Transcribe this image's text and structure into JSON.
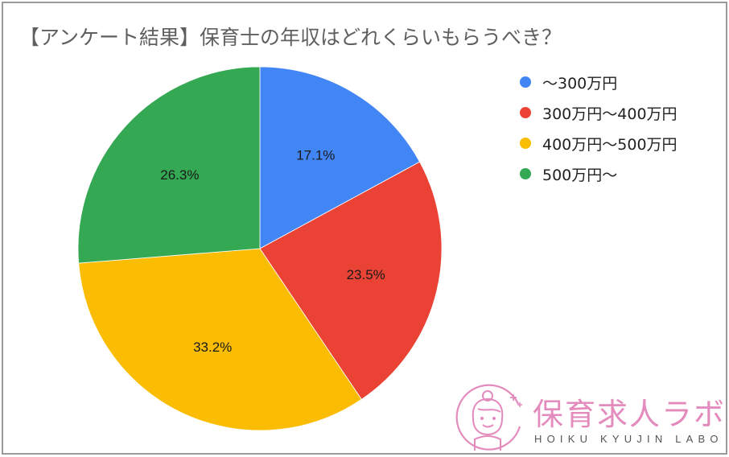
{
  "title": "【アンケート結果】保育士の年収はどれくらいもらうべき？",
  "chart_data": {
    "type": "pie",
    "title": "【アンケート結果】保育士の年収はどれくらいもらうべき？",
    "categories": [
      "～300万円",
      "300万円～400万円",
      "400万円～500万円",
      "500万円～"
    ],
    "values": [
      17.1,
      23.5,
      33.2,
      26.3
    ],
    "unit": "%",
    "colors": [
      "#4285F4",
      "#EA4335",
      "#FBBC04",
      "#34A853"
    ],
    "data_labels": [
      "17.1%",
      "23.5%",
      "33.2%",
      "26.3%"
    ],
    "legend_position": "right",
    "start_angle": "12 o'clock, clockwise"
  },
  "legend": {
    "items": [
      {
        "label": "～300万円",
        "color": "#4285F4"
      },
      {
        "label": "300万円～400万円",
        "color": "#EA4335"
      },
      {
        "label": "400万円～500万円",
        "color": "#FBBC04"
      },
      {
        "label": "500万円～",
        "color": "#34A853"
      }
    ]
  },
  "logo": {
    "name_jp": "保育求人ラボ",
    "name_en": "HOIKU KYUJIN LABO",
    "color": "#E48BBD"
  }
}
